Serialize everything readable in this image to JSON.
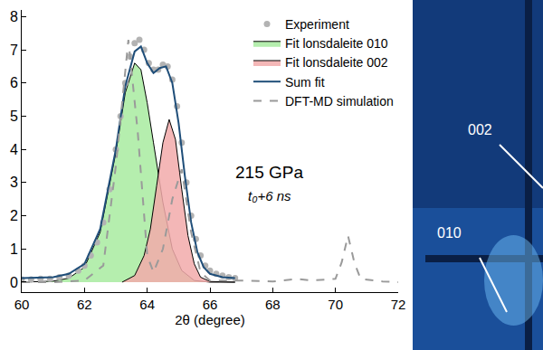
{
  "chart_data": {
    "type": "line",
    "x_label": "2θ (degree)",
    "xlim": [
      60,
      72
    ],
    "xticks": [
      60,
      62,
      64,
      66,
      68,
      70,
      72
    ],
    "ylim": [
      -0.3,
      8.2
    ],
    "yticks": [
      0,
      1,
      2,
      3,
      4,
      5,
      6,
      7,
      8
    ],
    "grid": false,
    "legend": "upper right",
    "annotations": [
      "215 GPa",
      "t₀+6 ns"
    ],
    "detector_labels": [
      "002",
      "010"
    ],
    "series": [
      {
        "name": "Experiment",
        "type": "scatter",
        "marker": "circle",
        "color": "#b3b3b3",
        "x": [
          60.0,
          60.3,
          60.6,
          60.9,
          61.2,
          61.5,
          61.8,
          62.0,
          62.2,
          62.4,
          62.6,
          62.8,
          63.0,
          63.15,
          63.3,
          63.45,
          63.6,
          63.75,
          63.9,
          64.05,
          64.2,
          64.35,
          64.5,
          64.65,
          64.8,
          64.95,
          65.1,
          65.25,
          65.4,
          65.55,
          65.7,
          65.85,
          66.0,
          66.2,
          66.4,
          66.6,
          66.8
        ],
        "values": [
          0.08,
          0.08,
          0.1,
          0.1,
          0.15,
          0.2,
          0.35,
          0.5,
          0.8,
          1.2,
          1.8,
          2.8,
          4.0,
          5.0,
          6.0,
          6.8,
          7.2,
          7.3,
          7.0,
          6.6,
          6.4,
          6.4,
          6.55,
          6.5,
          6.1,
          5.3,
          4.2,
          3.0,
          2.0,
          1.3,
          0.8,
          0.5,
          0.35,
          0.25,
          0.2,
          0.15,
          0.12
        ]
      },
      {
        "name": "Fit lonsdaleite 010",
        "type": "area",
        "color": "#a8eba0",
        "line_style": "solid",
        "x": [
          60,
          61,
          61.5,
          62,
          62.5,
          63,
          63.3,
          63.6,
          63.8,
          64.0,
          64.2,
          64.5,
          64.8,
          65.1,
          65.5,
          66,
          66.8
        ],
        "values": [
          0,
          0.03,
          0.12,
          0.45,
          1.5,
          3.9,
          5.7,
          6.6,
          6.4,
          5.4,
          4.2,
          2.4,
          1.0,
          0.35,
          0.05,
          0,
          0
        ]
      },
      {
        "name": "Fit lonsdaleite 002",
        "type": "area",
        "color": "#f2aaaa",
        "line_style": "solid",
        "x": [
          63.2,
          63.6,
          63.9,
          64.1,
          64.3,
          64.5,
          64.7,
          64.9,
          65.1,
          65.3,
          65.5,
          65.7,
          66,
          66.8
        ],
        "values": [
          0,
          0.2,
          0.8,
          1.6,
          2.9,
          4.2,
          4.9,
          4.3,
          2.8,
          1.4,
          0.55,
          0.15,
          0.02,
          0
        ]
      },
      {
        "name": "Sum fit",
        "type": "line",
        "color": "#1f4e79",
        "line_style": "solid",
        "x": [
          60,
          61,
          61.5,
          62,
          62.5,
          63,
          63.3,
          63.6,
          63.8,
          64.0,
          64.2,
          64.4,
          64.6,
          64.8,
          65.0,
          65.2,
          65.4,
          65.6,
          65.8,
          66,
          66.4,
          66.8
        ],
        "values": [
          0.12,
          0.15,
          0.25,
          0.55,
          1.6,
          4.0,
          5.9,
          6.95,
          7.1,
          6.6,
          6.3,
          6.45,
          6.5,
          6.0,
          4.8,
          3.2,
          1.8,
          0.9,
          0.45,
          0.25,
          0.15,
          0.12
        ]
      },
      {
        "name": "DFT-MD simulation",
        "type": "line",
        "color": "#9a9a9a",
        "line_style": "dashed",
        "x": [
          60,
          61,
          62,
          62.6,
          63.0,
          63.4,
          63.7,
          64.0,
          64.2,
          64.5,
          64.8,
          65.1,
          65.4,
          65.7,
          66,
          67,
          68,
          68.8,
          69.2,
          70.0,
          70.2,
          70.4,
          70.6,
          70.8,
          71.5,
          72
        ],
        "values": [
          0,
          0,
          0.05,
          0.5,
          3.5,
          7.3,
          4.5,
          0.8,
          0.3,
          1.0,
          2.5,
          3.4,
          1.5,
          0.3,
          0.05,
          0.05,
          0.02,
          0.1,
          0.05,
          0.1,
          0.6,
          1.4,
          0.6,
          0.1,
          0.02,
          0
        ]
      }
    ]
  }
}
